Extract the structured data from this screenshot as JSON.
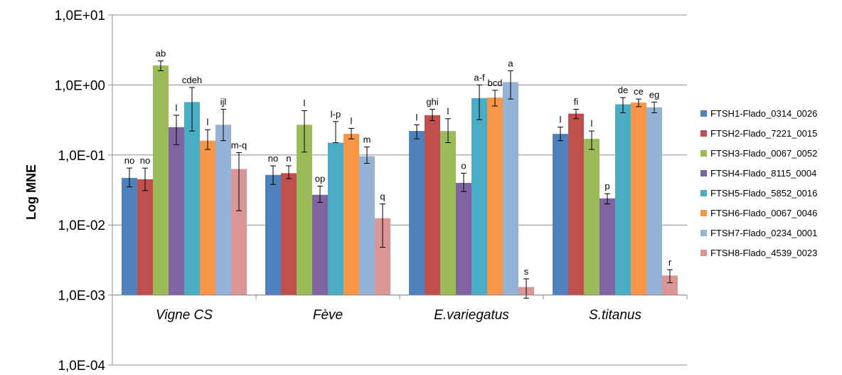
{
  "chart_data": {
    "type": "bar",
    "scale": "log",
    "ylabel": "Log MNE",
    "ylim": [
      0.0001,
      10
    ],
    "y_ticks": [
      "1,0E+01",
      "1,0E+00",
      "1,0E-01",
      "1,0E-02",
      "1,0E-03",
      "1,0E-04"
    ],
    "y_tick_values": [
      10,
      1,
      0.1,
      0.01,
      0.001,
      0.0001
    ],
    "bar_base": 0.001,
    "grid": "horizontal",
    "legend_position": "right",
    "categories": [
      "Vigne CS",
      "Fève",
      "E.variegatus",
      "S.titanus"
    ],
    "series": [
      {
        "name": "FTSH1-Flado_0314_0026",
        "color": "#4F81BD",
        "values": [
          0.047,
          0.052,
          0.22,
          0.2
        ],
        "err_low": [
          0.035,
          0.038,
          0.17,
          0.16
        ],
        "err_high": [
          0.065,
          0.07,
          0.27,
          0.25
        ],
        "labels": [
          "no",
          "no",
          "l",
          "l"
        ]
      },
      {
        "name": "FTSH2-Flado_7221_0015",
        "color": "#C0504D",
        "values": [
          0.045,
          0.055,
          0.37,
          0.39
        ],
        "err_low": [
          0.031,
          0.046,
          0.31,
          0.33
        ],
        "err_high": [
          0.065,
          0.07,
          0.45,
          0.45
        ],
        "labels": [
          "no",
          "n",
          "ghi",
          "fi"
        ]
      },
      {
        "name": "FTSH3-Flado_0067_0052",
        "color": "#9BBB59",
        "values": [
          1.9,
          0.27,
          0.22,
          0.17
        ],
        "err_low": [
          1.6,
          0.11,
          0.15,
          0.12
        ],
        "err_high": [
          2.2,
          0.43,
          0.33,
          0.22
        ],
        "labels": [
          "ab",
          "l",
          "l",
          "l"
        ]
      },
      {
        "name": "FTSH4-Flado_8115_0004",
        "color": "#8064A2",
        "values": [
          0.25,
          0.027,
          0.04,
          0.024
        ],
        "err_low": [
          0.14,
          0.021,
          0.03,
          0.02
        ],
        "err_high": [
          0.37,
          0.036,
          0.055,
          0.028
        ],
        "labels": [
          "l",
          "op",
          "o",
          "p"
        ]
      },
      {
        "name": "FTSH5-Flado_5852_0016",
        "color": "#4BACC6",
        "values": [
          0.57,
          0.15,
          0.65,
          0.53
        ],
        "err_low": [
          0.22,
          0.15,
          0.32,
          0.4
        ],
        "err_high": [
          0.92,
          0.3,
          1.0,
          0.66
        ],
        "labels": [
          "cdeh",
          "l-p",
          "a-f",
          "de"
        ]
      },
      {
        "name": "FTSH6-Flado_0067_0046",
        "color": "#F79646",
        "values": [
          0.16,
          0.2,
          0.66,
          0.56
        ],
        "err_low": [
          0.12,
          0.17,
          0.5,
          0.49
        ],
        "err_high": [
          0.23,
          0.24,
          0.84,
          0.63
        ],
        "labels": [
          "l",
          "l",
          "bcd",
          "ce"
        ]
      },
      {
        "name": "FTSH7-Flado_0234_0001",
        "color": "#95B3D7",
        "values": [
          0.27,
          0.096,
          1.1,
          0.48
        ],
        "err_low": [
          0.16,
          0.076,
          0.63,
          0.4
        ],
        "err_high": [
          0.45,
          0.13,
          1.6,
          0.57
        ],
        "labels": [
          "ijl",
          "m",
          "a",
          "eg"
        ]
      },
      {
        "name": "FTSH8-Flado_4539_0023",
        "color": "#D99694",
        "values": [
          0.063,
          0.0125,
          0.0013,
          0.0019
        ],
        "err_low": [
          0.016,
          0.0048,
          0.0009,
          0.0015
        ],
        "err_high": [
          0.108,
          0.02,
          0.0017,
          0.0023
        ],
        "labels": [
          "m-q",
          "q",
          "s",
          "r"
        ]
      }
    ]
  }
}
